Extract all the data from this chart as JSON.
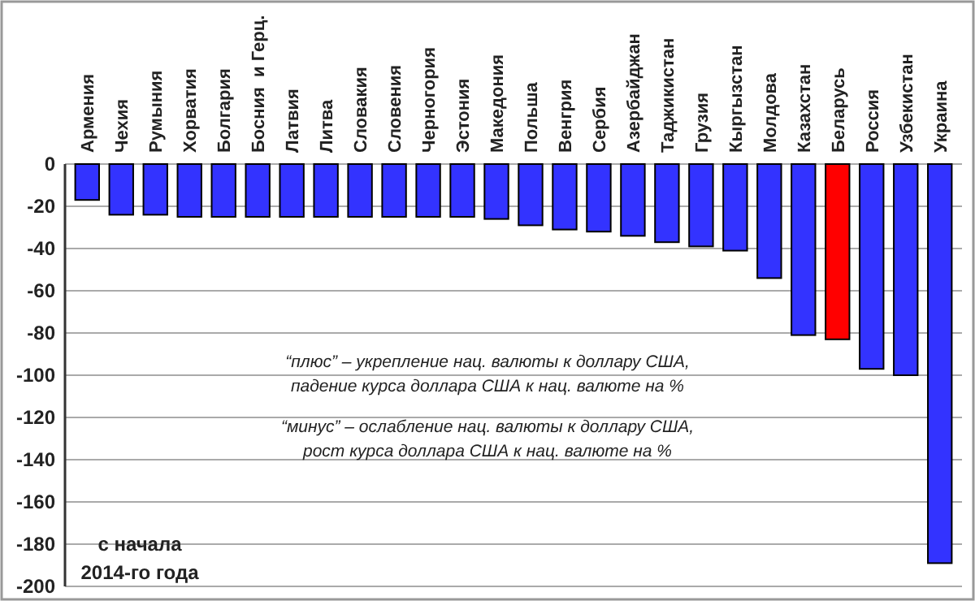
{
  "chart_data": {
    "type": "bar",
    "categories": [
      "Армения",
      "Чехия",
      "Румыния",
      "Хорватия",
      "Болгария",
      "Босния  и Герц.",
      "Латвия",
      "Литва",
      "Словакия",
      "Словения",
      "Черногория",
      "Эстония",
      "Македония",
      "Польша",
      "Венгрия",
      "Сербия",
      "Азербайджан",
      "Таджикистан",
      "Грузия",
      "Кыргызстан",
      "Молдова",
      "Казахстан",
      "Беларусь",
      "Россия",
      "Узбекистан",
      "Украина"
    ],
    "values": [
      -17,
      -24,
      -24,
      -25,
      -25,
      -25,
      -25,
      -25,
      -25,
      -25,
      -25,
      -25,
      -26,
      -29,
      -31,
      -32,
      -34,
      -37,
      -39,
      -41,
      -54,
      -81,
      -83,
      -97,
      -100,
      -189
    ],
    "colors": [
      "#3333ff",
      "#3333ff",
      "#3333ff",
      "#3333ff",
      "#3333ff",
      "#3333ff",
      "#3333ff",
      "#3333ff",
      "#3333ff",
      "#3333ff",
      "#3333ff",
      "#3333ff",
      "#3333ff",
      "#3333ff",
      "#3333ff",
      "#3333ff",
      "#3333ff",
      "#3333ff",
      "#3333ff",
      "#3333ff",
      "#3333ff",
      "#3333ff",
      "#ff0000",
      "#3333ff",
      "#3333ff",
      "#3333ff"
    ],
    "ylim": [
      -200,
      0
    ],
    "yticks": [
      -200,
      -180,
      -160,
      -140,
      -120,
      -100,
      -80,
      -60,
      -40,
      -20,
      0
    ],
    "grid": "y",
    "annotations": [
      "“плюс” – укрепление нац. валюты к доллару США,\nпадение курса доллара США к нац. валюте на %",
      "“минус” – ослабление нац. валюты к доллару США,\nрост курса доллара США к нац. валюте на %",
      "с начала\n2014-го года"
    ]
  }
}
